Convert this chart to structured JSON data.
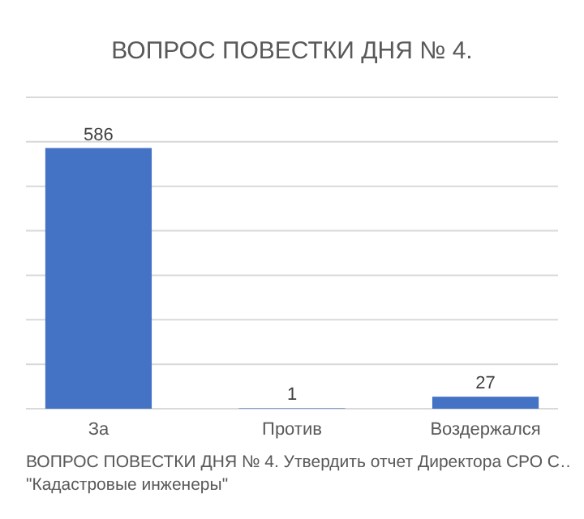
{
  "chart_data": {
    "type": "bar",
    "title": "ВОПРОС ПОВЕСТКИ ДНЯ № 4.",
    "categories": [
      "За",
      "Против",
      "Воздержался"
    ],
    "values": [
      586,
      1,
      27
    ],
    "color": "#4472c4",
    "data_labels": true,
    "ylim": [
      0,
      700
    ],
    "yticks": [
      {
        "value": 0,
        "label": null
      },
      {
        "value": 100,
        "label": null
      },
      {
        "value": 200,
        "label": null
      },
      {
        "value": 300,
        "label": null
      },
      {
        "value": 400,
        "label": null
      },
      {
        "value": 500,
        "label": null
      },
      {
        "value": 600,
        "label": null
      },
      {
        "value": 700,
        "label": null
      }
    ],
    "grid": "y",
    "tick_labels": "x",
    "annotations": [
      "ВОПРОС ПОВЕСТКИ ДНЯ № 4. Утвердить отчет Директора СРО С…",
      "\"Кадастровые инженеры\""
    ]
  }
}
